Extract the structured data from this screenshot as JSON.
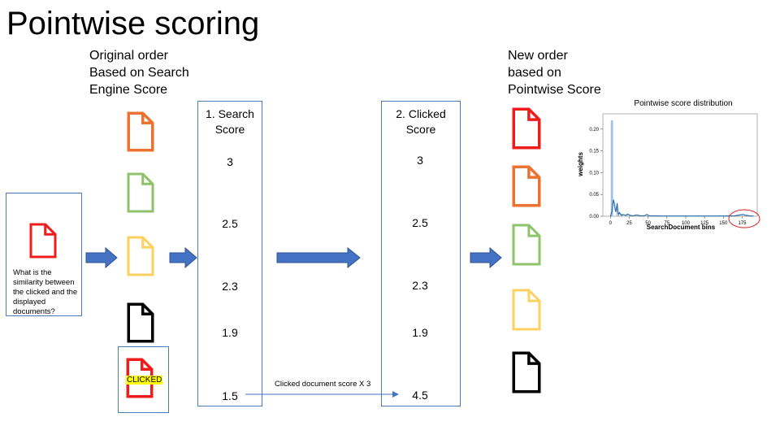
{
  "title": "Pointwise scoring",
  "original_order_heading": [
    "Original order",
    "Based on Search",
    "Engine Score"
  ],
  "new_order_heading": [
    "New order",
    "based on",
    "Pointwise Score"
  ],
  "query_box": {
    "question": "What is the similarity between the clicked and the displayed documents?"
  },
  "clicked_label": "CLICKED",
  "column1": {
    "header": [
      "1. Search",
      "Score"
    ],
    "scores": [
      "3",
      "2.5",
      "2.3",
      "1.9",
      "1.5"
    ]
  },
  "column2": {
    "header": [
      "2. Clicked",
      "Score"
    ],
    "scores": [
      "3",
      "2.5",
      "2.3",
      "1.9",
      "4.5"
    ]
  },
  "boost_annotation": "Clicked document score X 3",
  "colors": {
    "red": "#ee1c1c",
    "orange": "#ec7232",
    "green": "#8fc36b",
    "yellow": "#fdd15f",
    "black": "#000000",
    "arrow_blue": "#4472c4",
    "box_border": "#4a7ab8"
  },
  "original_docs": [
    "orange",
    "green",
    "yellow",
    "black",
    "red"
  ],
  "new_docs": [
    "red",
    "orange",
    "green",
    "yellow",
    "black"
  ],
  "chart_data": {
    "type": "area",
    "title": "Pointwise score distribution",
    "xlabel": "SearchDocument bins",
    "ylabel": "weights",
    "xlim": [
      -10,
      195
    ],
    "ylim": [
      0,
      0.235
    ],
    "xticks": [
      0,
      25,
      50,
      75,
      100,
      125,
      150,
      175
    ],
    "yticks": [
      0.0,
      0.05,
      0.1,
      0.15,
      0.2
    ],
    "ytick_labels": [
      "0.00",
      "0.05",
      "0.10",
      "0.15",
      "0.20"
    ],
    "histogram_bars": [
      {
        "x": 2,
        "width": 3,
        "value": 0.22
      },
      {
        "x": 9,
        "width": 2,
        "value": 0.018
      },
      {
        "x": 15,
        "width": 2,
        "value": 0.006
      },
      {
        "x": 22,
        "width": 2,
        "value": 0.004
      }
    ],
    "density": {
      "x": [
        0,
        2,
        4,
        5,
        6,
        7,
        8,
        9,
        10,
        11,
        12,
        13,
        14,
        15,
        17,
        20,
        23,
        26,
        30,
        35,
        40,
        45,
        48,
        52,
        60,
        70,
        90,
        120,
        150,
        165,
        172,
        176,
        180,
        185,
        190
      ],
      "y": [
        0,
        0.01,
        0.038,
        0.032,
        0.02,
        0.01,
        0.018,
        0.03,
        0.012,
        0.004,
        0.008,
        0.006,
        0.003,
        0.002,
        0.004,
        0.002,
        0.005,
        0.002,
        0.001,
        0.003,
        0.001,
        0.001,
        0.004,
        0.001,
        0.001,
        0.0005,
        0.0005,
        0.0005,
        0.0005,
        0.001,
        0.003,
        0.004,
        0.002,
        0.001,
        0.0005
      ]
    },
    "annotation": "red ellipse highlights bins near 175",
    "grid": false
  }
}
